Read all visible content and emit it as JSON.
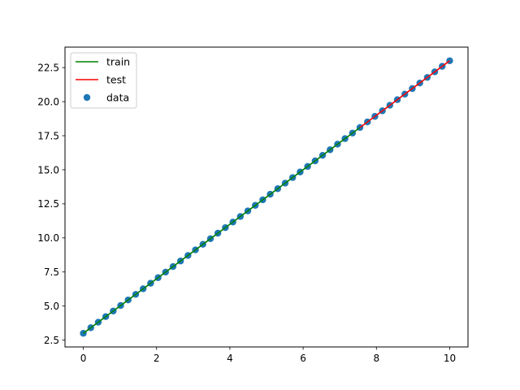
{
  "chart_data": {
    "type": "scatter",
    "title": "",
    "xlabel": "",
    "ylabel": "",
    "xlim": [
      -0.5,
      10.5
    ],
    "ylim": [
      2.0,
      24.0
    ],
    "grid": false,
    "legend_position": "top-left",
    "x_ticks": [
      {
        "value": 0,
        "label": "0"
      },
      {
        "value": 2,
        "label": "2"
      },
      {
        "value": 4,
        "label": "4"
      },
      {
        "value": 6,
        "label": "6"
      },
      {
        "value": 8,
        "label": "8"
      },
      {
        "value": 10,
        "label": "10"
      }
    ],
    "y_ticks": [
      {
        "value": 2.5,
        "label": "2.5"
      },
      {
        "value": 5.0,
        "label": "5.0"
      },
      {
        "value": 7.5,
        "label": "7.5"
      },
      {
        "value": 10.0,
        "label": "10.0"
      },
      {
        "value": 12.5,
        "label": "12.5"
      },
      {
        "value": 15.0,
        "label": "15.0"
      },
      {
        "value": 17.5,
        "label": "17.5"
      },
      {
        "value": 20.0,
        "label": "20.0"
      },
      {
        "value": 22.5,
        "label": "22.5"
      }
    ],
    "series": [
      {
        "name": "train",
        "kind": "line",
        "color": "#008000",
        "x": [
          0.0,
          7.551
        ],
        "y": [
          3.0,
          18.102
        ]
      },
      {
        "name": "test",
        "kind": "line",
        "color": "#ff0000",
        "x": [
          7.551,
          10.0
        ],
        "y": [
          18.102,
          23.0
        ]
      },
      {
        "name": "data",
        "kind": "scatter",
        "color": "#1f77b4",
        "x": [
          0.0,
          0.204,
          0.408,
          0.612,
          0.816,
          1.02,
          1.224,
          1.429,
          1.633,
          1.837,
          2.041,
          2.245,
          2.449,
          2.653,
          2.857,
          3.061,
          3.265,
          3.469,
          3.673,
          3.878,
          4.082,
          4.286,
          4.49,
          4.694,
          4.898,
          5.102,
          5.306,
          5.51,
          5.714,
          5.918,
          6.122,
          6.327,
          6.531,
          6.735,
          6.939,
          7.143,
          7.347,
          7.551,
          7.755,
          7.959,
          8.163,
          8.367,
          8.571,
          8.776,
          8.98,
          9.184,
          9.388,
          9.592,
          9.796,
          10.0
        ],
        "y": [
          3.0,
          3.408,
          3.816,
          4.224,
          4.633,
          5.041,
          5.449,
          5.857,
          6.265,
          6.673,
          7.082,
          7.49,
          7.898,
          8.306,
          8.714,
          9.122,
          9.531,
          9.939,
          10.347,
          10.755,
          11.163,
          11.571,
          11.98,
          12.388,
          12.796,
          13.204,
          13.612,
          14.02,
          14.429,
          14.837,
          15.245,
          15.653,
          16.061,
          16.469,
          16.878,
          17.286,
          17.694,
          18.102,
          18.51,
          18.918,
          19.327,
          19.735,
          20.143,
          20.551,
          20.959,
          21.367,
          21.776,
          22.184,
          22.592,
          23.0
        ]
      }
    ]
  }
}
